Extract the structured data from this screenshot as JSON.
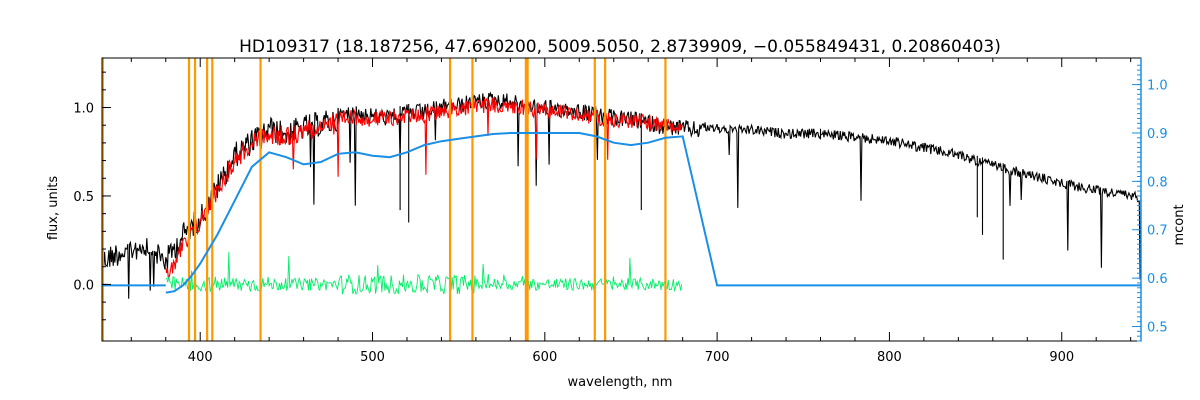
{
  "colors": {
    "observed": "#000000",
    "model": "#ff0000",
    "residual": "#00ee66",
    "continuum": "#1a8fe6",
    "masks": "#ff9900",
    "right_axis": "#1a8fe6",
    "highlight": "#ffff00"
  },
  "chart_data": {
    "type": "line",
    "title": "HD109317   (18.187256, 47.690200, 5009.5050, 2.8739909, −0.055849431, 0.20860403)",
    "xlabel": "wavelength, nm",
    "ylabel": "flux, units",
    "y2label": "mcont",
    "xlim": [
      343,
      946
    ],
    "ylim": [
      -0.32,
      1.28
    ],
    "y2lim": [
      0.47,
      1.055
    ],
    "xticks": [
      400,
      500,
      600,
      700,
      800,
      900
    ],
    "yticks": [
      0.0,
      0.5,
      1.0
    ],
    "ytick_labels": [
      "0.0",
      "0.5",
      "1.0"
    ],
    "y2ticks": [
      0.5,
      0.6,
      0.7,
      0.8,
      0.9,
      1.0
    ],
    "y2tick_labels": [
      "0.5",
      "0.6",
      "0.7",
      "0.8",
      "0.9",
      "1.0"
    ],
    "grid": false,
    "legend": "none",
    "mask_lines_x": [
      343.5,
      393.5,
      397,
      404,
      407,
      435,
      545,
      558,
      589,
      590,
      629,
      635,
      670
    ],
    "series": [
      {
        "role": "observed",
        "x": [
          343,
          350,
          360,
          370,
          380,
          390,
          400,
          410,
          420,
          430,
          440,
          450,
          460,
          470,
          480,
          490,
          500,
          510,
          520,
          530,
          540,
          550,
          560,
          570,
          580,
          590,
          600,
          610,
          620,
          630,
          640,
          650,
          660,
          670,
          680,
          700,
          720,
          740,
          760,
          780,
          800,
          820,
          840,
          860,
          880,
          900,
          920,
          940,
          946
        ],
        "y": [
          0.2,
          0.24,
          0.27,
          0.3,
          0.2,
          0.35,
          0.45,
          0.62,
          0.8,
          0.88,
          0.95,
          0.92,
          0.96,
          0.98,
          1.0,
          1.02,
          1.0,
          0.99,
          1.02,
          1.02,
          1.05,
          1.06,
          1.08,
          1.09,
          1.08,
          1.06,
          1.05,
          1.04,
          1.03,
          1.0,
          0.99,
          0.98,
          0.96,
          0.94,
          0.93,
          0.91,
          0.9,
          0.88,
          0.88,
          0.86,
          0.84,
          0.8,
          0.76,
          0.7,
          0.65,
          0.6,
          0.56,
          0.53,
          0.52
        ]
      },
      {
        "role": "model",
        "x": [
          380,
          385,
          390,
          395,
          400,
          410,
          420,
          430,
          440,
          450,
          460,
          470,
          480,
          490,
          500,
          510,
          520,
          530,
          540,
          550,
          560,
          570,
          580,
          590,
          600,
          610,
          620,
          630,
          640,
          650,
          660,
          670,
          680
        ],
        "y": [
          0.12,
          0.18,
          0.27,
          0.34,
          0.42,
          0.6,
          0.76,
          0.86,
          0.9,
          0.9,
          0.93,
          0.95,
          0.97,
          0.99,
          0.98,
          0.98,
          1.0,
          1.0,
          1.02,
          1.04,
          1.05,
          1.06,
          1.05,
          1.04,
          1.03,
          1.02,
          1.01,
          0.99,
          0.98,
          0.97,
          0.96,
          0.94,
          0.93
        ]
      },
      {
        "role": "residual",
        "x": [
          380,
          680
        ],
        "y": [
          0.0,
          0.0
        ]
      },
      {
        "role": "continuum",
        "axis": "right",
        "x": [
          380,
          385,
          390,
          395,
          400,
          410,
          420,
          430,
          440,
          450,
          460,
          470,
          480,
          490,
          500,
          510,
          520,
          530,
          540,
          550,
          560,
          570,
          580,
          590,
          600,
          610,
          620,
          630,
          640,
          650,
          660,
          670,
          680,
          700,
          760,
          800,
          900,
          946
        ],
        "y": [
          0.57,
          0.573,
          0.585,
          0.605,
          0.63,
          0.69,
          0.76,
          0.83,
          0.86,
          0.85,
          0.835,
          0.84,
          0.857,
          0.86,
          0.853,
          0.85,
          0.86,
          0.875,
          0.883,
          0.888,
          0.893,
          0.898,
          0.9,
          0.9,
          0.9,
          0.9,
          0.9,
          0.893,
          0.88,
          0.875,
          0.88,
          0.89,
          0.893,
          0.585,
          0.585,
          0.585,
          0.585,
          0.585
        ]
      }
    ]
  }
}
